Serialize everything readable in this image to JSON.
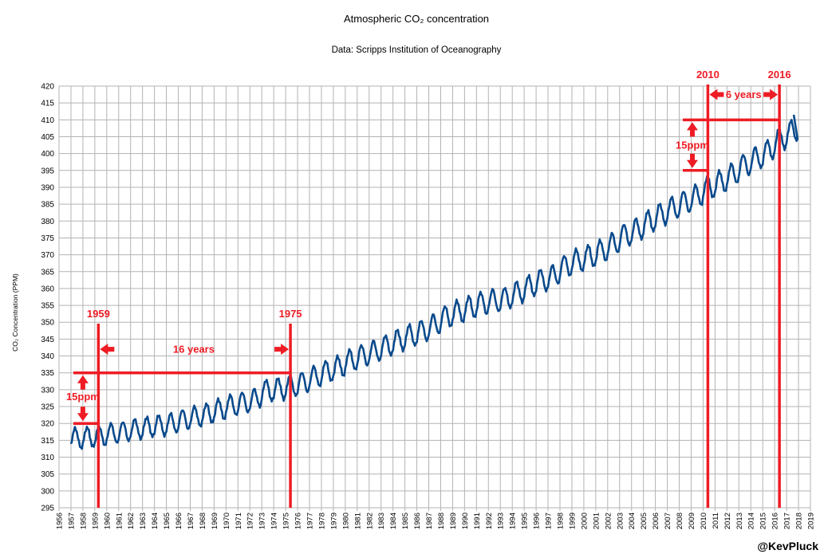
{
  "chart_data": {
    "type": "line",
    "title": "Atmospheric CO₂ concentration",
    "subtitle": "Data: Scripps Institution of Oceanography",
    "ylabel": "CO₂ Concentration (PPM)",
    "xlabel": "",
    "ylim": [
      295,
      420
    ],
    "ystep": 5,
    "xlim": [
      1956,
      2019
    ],
    "x_ticks": [
      1956,
      1957,
      1958,
      1959,
      1960,
      1961,
      1962,
      1963,
      1964,
      1965,
      1966,
      1967,
      1968,
      1969,
      1970,
      1971,
      1972,
      1973,
      1974,
      1975,
      1976,
      1977,
      1978,
      1979,
      1980,
      1981,
      1982,
      1983,
      1984,
      1985,
      1986,
      1987,
      1988,
      1989,
      1990,
      1991,
      1992,
      1993,
      1994,
      1995,
      1996,
      1997,
      1998,
      1999,
      2000,
      2001,
      2002,
      2003,
      2004,
      2005,
      2006,
      2007,
      2008,
      2009,
      2010,
      2011,
      2012,
      2013,
      2014,
      2015,
      2016,
      2017,
      2018,
      2019
    ],
    "grid": true,
    "series_color": "#0a4a8c",
    "annotation_color": "#ee1c24",
    "series": [
      {
        "x": [
          1957.5,
          1958.5,
          1959.5,
          1960.5,
          1961.5,
          1962.5,
          1963.5,
          1964.5,
          1965.5,
          1966.5,
          1967.5,
          1968.5,
          1969.5,
          1970.5,
          1971.5,
          1972.5,
          1973.5,
          1974.5,
          1975.5,
          1976.5,
          1977.5,
          1978.5,
          1979.5,
          1980.5,
          1981.5,
          1982.5,
          1983.5,
          1984.5,
          1985.5,
          1986.5,
          1987.5,
          1988.5,
          1989.5,
          1990.5,
          1991.5,
          1992.5,
          1993.5,
          1994.5,
          1995.5,
          1996.5,
          1997.5,
          1998.5,
          1999.5,
          2000.5,
          2001.5,
          2002.5,
          2003.5,
          2004.5,
          2005.5,
          2006.5,
          2007.5,
          2008.5,
          2009.5,
          2010.5,
          2011.5,
          2012.5,
          2013.5,
          2014.5,
          2015.5,
          2016.5,
          2017.5
        ],
        "annual_mean": [
          315.6,
          315.9,
          316.3,
          317.0,
          317.6,
          318.3,
          318.9,
          319.4,
          320.0,
          321.1,
          322.0,
          322.9,
          324.1,
          325.3,
          326.2,
          327.3,
          329.7,
          330.2,
          331.1,
          332.1,
          333.8,
          335.4,
          336.8,
          338.7,
          340.1,
          341.4,
          343.0,
          344.6,
          346.0,
          347.4,
          349.2,
          351.6,
          353.1,
          354.4,
          355.6,
          356.4,
          357.1,
          358.8,
          360.6,
          362.4,
          363.8,
          366.6,
          368.3,
          369.5,
          371.1,
          373.2,
          375.8,
          377.5,
          379.8,
          381.9,
          383.8,
          385.6,
          387.4,
          389.9,
          391.6,
          393.8,
          396.5,
          398.6,
          400.8,
          404.2,
          406.5
        ],
        "seasonal_amplitude": [
          3.0,
          3.0,
          3.0,
          3.0,
          3.0,
          3.0,
          3.0,
          3.1,
          3.1,
          3.1,
          3.1,
          3.1,
          3.2,
          3.2,
          3.2,
          3.2,
          3.2,
          3.3,
          3.3,
          3.3,
          3.3,
          3.3,
          3.3,
          3.3,
          3.3,
          3.3,
          3.3,
          3.3,
          3.4,
          3.4,
          3.4,
          3.4,
          3.4,
          3.4,
          3.4,
          3.4,
          3.4,
          3.4,
          3.4,
          3.4,
          3.4,
          3.4,
          3.4,
          3.5,
          3.5,
          3.5,
          3.5,
          3.5,
          3.5,
          3.5,
          3.5,
          3.5,
          3.5,
          3.5,
          3.5,
          3.5,
          3.5,
          3.5,
          3.5,
          3.5,
          3.5
        ],
        "end_x": 2017.6,
        "end_y": 411.5
      }
    ],
    "annotations": {
      "vlines": [
        {
          "x": 1959.3,
          "label": "1959"
        },
        {
          "x": 1975.4,
          "label": "1975"
        },
        {
          "x": 2010.4,
          "label": "2010"
        },
        {
          "x": 2016.4,
          "label": "2016"
        }
      ],
      "hlines": [
        {
          "y": 320,
          "x_from": 1957.2,
          "x_to": 1959.3
        },
        {
          "y": 335,
          "x_from": 1957.2,
          "x_to": 1975.4
        },
        {
          "y": 395,
          "x_from": 2008.3,
          "x_to": 2010.4
        },
        {
          "y": 410,
          "x_from": 2008.3,
          "x_to": 2016.4
        }
      ],
      "span_labels": [
        {
          "text": "16 years",
          "x": 1967.3,
          "y": 342
        },
        {
          "text": "6 years",
          "x": 2013.4,
          "y": 417.5
        }
      ],
      "ppm_labels": [
        {
          "text": "15ppm",
          "x": 1958.0,
          "y": 328
        },
        {
          "text": "15ppm",
          "x": 2009.1,
          "y": 402.5
        }
      ]
    }
  },
  "credit": "@KevPluck"
}
